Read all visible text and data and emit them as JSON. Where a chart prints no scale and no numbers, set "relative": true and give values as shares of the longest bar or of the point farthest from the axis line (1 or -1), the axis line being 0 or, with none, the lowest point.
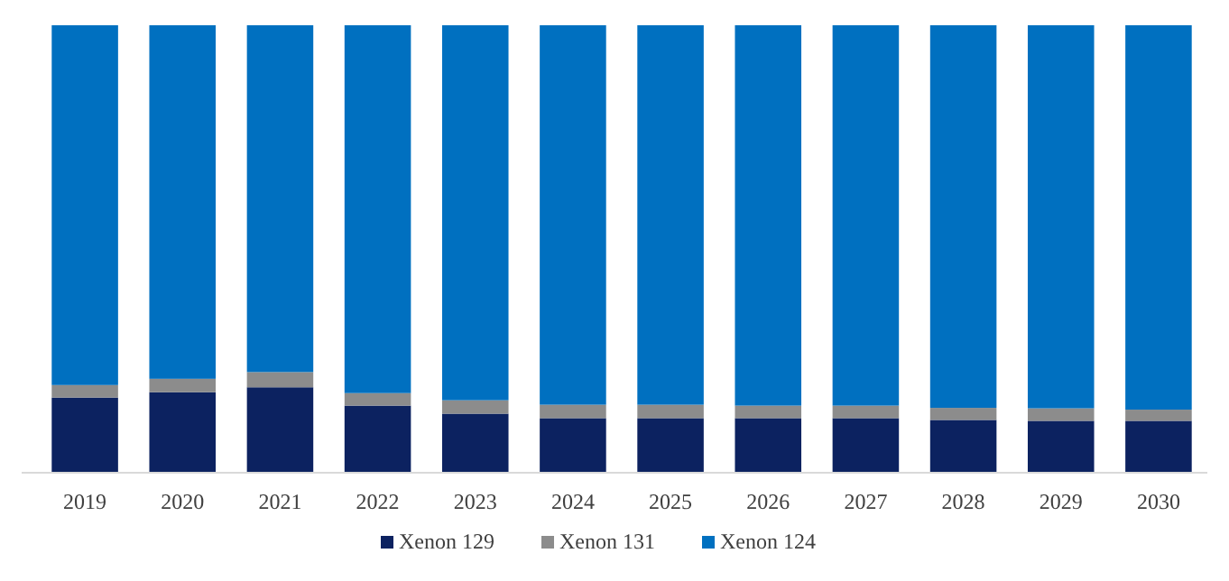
{
  "chart_data": {
    "type": "bar",
    "stacked": true,
    "relative": true,
    "legend": "bottom",
    "categories": [
      "2019",
      "2020",
      "2021",
      "2022",
      "2023",
      "2024",
      "2025",
      "2026",
      "2027",
      "2028",
      "2029",
      "2030"
    ],
    "series": [
      {
        "name": "Xenon 129",
        "color": "#0c2260",
        "values": [
          0.168,
          0.18,
          0.191,
          0.15,
          0.132,
          0.122,
          0.122,
          0.122,
          0.122,
          0.118,
          0.116,
          0.116
        ]
      },
      {
        "name": "Xenon 131",
        "color": "#8c8c8c",
        "values": [
          0.028,
          0.03,
          0.034,
          0.028,
          0.03,
          0.03,
          0.03,
          0.028,
          0.028,
          0.027,
          0.028,
          0.025
        ]
      },
      {
        "name": "Xenon 124",
        "color": "#0070c0",
        "values": [
          0.804,
          0.79,
          0.775,
          0.822,
          0.838,
          0.848,
          0.848,
          0.85,
          0.85,
          0.855,
          0.856,
          0.859
        ]
      }
    ]
  }
}
